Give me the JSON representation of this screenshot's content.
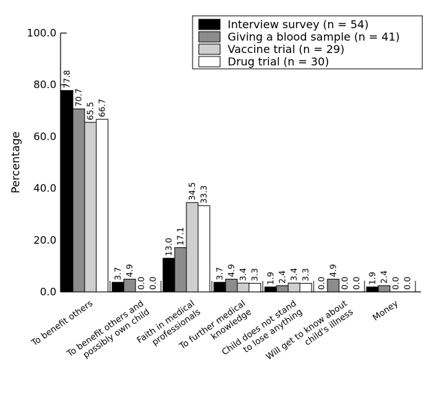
{
  "chart_data": {
    "type": "bar",
    "title": "",
    "xlabel": "",
    "ylabel": "Percentage",
    "ylim": [
      0,
      100
    ],
    "yticks": [
      "0.0",
      "20.0",
      "40.0",
      "60.0",
      "80.0",
      "100.0"
    ],
    "categories": [
      [
        "To benefit others"
      ],
      [
        "To benefit others and",
        "possibly own child"
      ],
      [
        "Faith in medical",
        "professionals"
      ],
      [
        "To further medical",
        "knowledge"
      ],
      [
        "Child does not stand",
        "to lose anything"
      ],
      [
        "Will get to know about",
        "child's illness"
      ],
      [
        "Money"
      ]
    ],
    "series": [
      {
        "name": "Interview survey (n = 54)",
        "color": "#000000",
        "values": [
          77.8,
          3.7,
          13.0,
          3.7,
          1.9,
          0.0,
          1.9
        ],
        "labels": [
          "77.8",
          "3.7",
          "13.0",
          "3.7",
          "1.9",
          "0.0",
          "1.9"
        ]
      },
      {
        "name": "Giving a blood sample (n = 41)",
        "color": "#8c8c8c",
        "values": [
          70.7,
          4.9,
          17.1,
          4.9,
          2.4,
          4.9,
          2.4
        ],
        "labels": [
          "70.7",
          "4.9",
          "17.1",
          "4.9",
          "2.4",
          "4.9",
          "2.4"
        ]
      },
      {
        "name": "Vaccine trial (n = 29)",
        "color": "#cfcfcf",
        "values": [
          65.5,
          0.0,
          34.5,
          3.4,
          3.4,
          0.0,
          0.0
        ],
        "labels": [
          "65.5",
          "0.0",
          "34.5",
          "3.4",
          "3.4",
          "0.0",
          "0.0"
        ]
      },
      {
        "name": "Drug trial (n = 30)",
        "color": "#ffffff",
        "values": [
          66.7,
          0.0,
          33.3,
          3.3,
          3.3,
          0.0,
          0.0
        ],
        "labels": [
          "66.7",
          "0.0",
          "33.3",
          "3.3",
          "3.3",
          "0.0",
          "0.0"
        ]
      }
    ],
    "legend": "top-right",
    "grid": false
  }
}
